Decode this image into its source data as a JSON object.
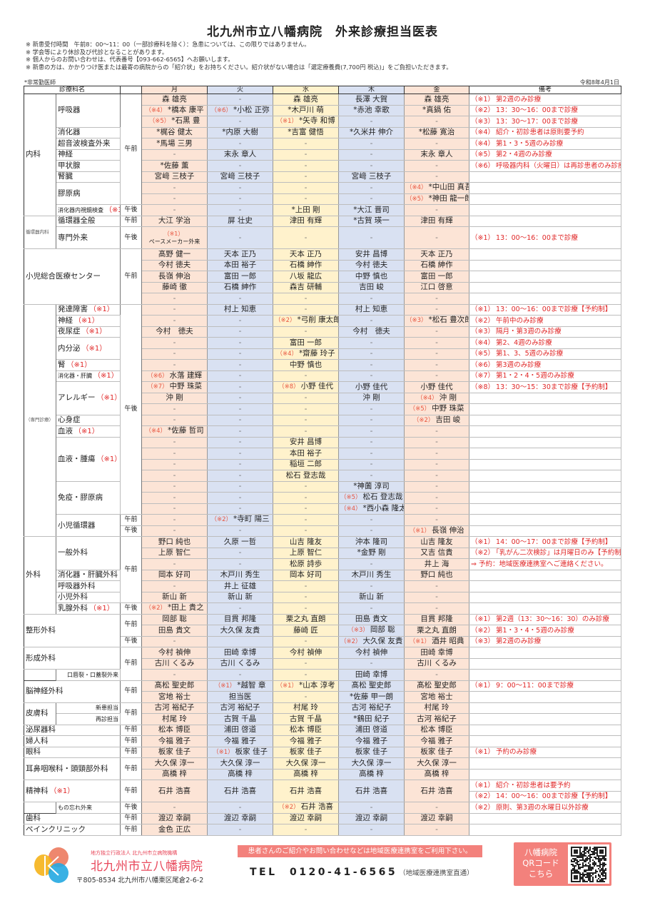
{
  "header": {
    "title": "北九州市立八幡病院　外来診療担当医表",
    "notes": [
      "※ 新患受付時間　午前8：00～11：00（一部診療科を除く）：急患については、この限りではありません。",
      "※ 学会等により休診及び代診となることがあります。",
      "※ 個人からのお問い合わせは、代表番号【093-662-6565】へお願いします。",
      "※ 新患の方は、かかりつけ医または最寄の病院からの「紹介状」をお持ちください。紹介状がない場合は「選定療養費(7,700円 税込)」をご負担いただきます。"
    ],
    "legend": "*非常勤医師",
    "date": "令和8年4月1日"
  },
  "columns": {
    "dept": "診療科名",
    "days": [
      "月",
      "火",
      "水",
      "木",
      "金"
    ],
    "remarks": "備考"
  },
  "colors": {
    "mon": "#fce4d6",
    "tue": "#d9e1f2",
    "wed": "#fff2cc",
    "thu": "#d9e1f2",
    "fri": "#fce4d6",
    "remarks": "#e02727",
    "brand": "#e8475a"
  },
  "rows": [
    {
      "sep": true,
      "d": {
        "t": "内科",
        "rs": 11
      },
      "s": {
        "t": "呼吸器",
        "rs": 3
      },
      "tm": {
        "t": "午前",
        "rs": 10
      },
      "days": [
        "森 雄亮",
        "-",
        "森 雄亮",
        "長澤 大賀",
        "森 雄亮"
      ],
      "n": [
        "（※1）",
        "第2週のみ診療"
      ]
    },
    {
      "days": [
        [
          "（※4）",
          "*橋本 康平"
        ],
        [
          "（※6）",
          "*小松 正弥"
        ],
        "*木戸川 萌",
        "*赤池 幸歌",
        "*真鍋 佑"
      ],
      "n": [
        "（※2）",
        "13：30～16：00まで診療"
      ]
    },
    {
      "days": [
        [
          "（※5）",
          "*石黒 豊"
        ],
        "-",
        [
          "（※1）",
          "*矢寺 和博"
        ],
        "-",
        "-"
      ],
      "n": [
        "（※3）",
        "13：30～17：00まで診療"
      ]
    },
    {
      "s": "消化器",
      "days": [
        "*梶谷 健太",
        "*内原 大樹",
        "*吉富 健悟",
        "*久米井 伸介",
        "*松藤 寛治"
      ],
      "n": [
        "（※4）",
        "紹介・初診患者は原則要予約"
      ]
    },
    {
      "s": "超音波検査外来",
      "days": [
        "*馬場 三男",
        "-",
        "-",
        "-",
        "-"
      ],
      "n": [
        "（※4）",
        "第1・3・5週のみ診療"
      ]
    },
    {
      "s": "神経",
      "days": [
        "-",
        "末永 章人",
        "-",
        "-",
        "末永 章人"
      ],
      "n": [
        "（※5）",
        "第2・4週のみ診療"
      ]
    },
    {
      "s": "甲状腺",
      "days": [
        "*佐藤 薫",
        "-",
        "-",
        "-",
        "-"
      ],
      "n": [
        "（※6）",
        "呼吸器内科（火曜日）は再診患者のみ診療"
      ]
    },
    {
      "s": "腎臓",
      "days": [
        "宮﨑 三枝子",
        "宮﨑 三枝子",
        "-",
        "宮﨑 三枝子",
        "-"
      ],
      "n": ""
    },
    {
      "s": {
        "t": "膠原病",
        "rs": 2
      },
      "days": [
        "-",
        "-",
        "-",
        "-",
        [
          "（※4）",
          "*中山田 真吾"
        ]
      ],
      "n": ""
    },
    {
      "days": [
        "-",
        "-",
        "-",
        "-",
        [
          "（※5）",
          "*神田 龍一郎"
        ]
      ],
      "n": ""
    },
    {
      "s": {
        "t": [
          "消化器内視鏡検査",
          "（※3）"
        ],
        "cls": "sm"
      },
      "tm": "午後",
      "days": [
        "-",
        "-",
        "*上田 剛",
        "*大江 晋司",
        "-"
      ],
      "n": ""
    },
    {
      "sep": true,
      "d": {
        "t": "循環器内科",
        "rs": 3,
        "cls": "xs"
      },
      "s": "循環器全般",
      "tm": "午前",
      "days": [
        "大江 学治",
        "屏 壮史",
        "津田 有輝",
        "*古賀 瑛一",
        "津田 有輝"
      ],
      "n": ""
    },
    {
      "s": {
        "t": "専門外来",
        "rs": 2
      },
      "tm": {
        "t": "午後",
        "rs": 2
      },
      "days": [
        {
          "t": [
            "（※1）",
            "ペースメーカー外来"
          ],
          "rs": 2,
          "cls": "stack"
        },
        {
          "t": "-",
          "rs": 2
        },
        {
          "t": "-",
          "rs": 2
        },
        {
          "t": "-",
          "rs": 2
        },
        {
          "t": "-",
          "rs": 2
        }
      ],
      "n": {
        "t": [
          "（※1）",
          "13：00～16：00まで診療"
        ],
        "rs": 2
      }
    },
    {
      "days": [
        null,
        null,
        null,
        null,
        null
      ]
    },
    {
      "sep": true,
      "d": {
        "t": "小児総合医療センター",
        "cs": 2,
        "rs": 5
      },
      "tm": {
        "t": "午前",
        "rs": 5
      },
      "days": [
        "髙野 健一",
        "天本 正乃",
        "天本 正乃",
        "安井 昌博",
        "天本 正乃"
      ],
      "n": ""
    },
    {
      "days": [
        "今村 徳夫",
        "本田 裕子",
        "石橋 紳作",
        "今村 徳夫",
        "石橋 紳作"
      ],
      "n": ""
    },
    {
      "days": [
        "長嶺 伸治",
        "富田 一郎",
        "八坂 龍広",
        "中野 慎也",
        "富田 一郎"
      ],
      "n": ""
    },
    {
      "days": [
        "藤崎 徹",
        "石橋 紳作",
        "森吉 研輔",
        "吉田 峻",
        "江口 啓意"
      ],
      "n": ""
    },
    {
      "days": [
        "-",
        "-",
        "-",
        "-",
        "-"
      ],
      "n": ""
    },
    {
      "d": {
        "t": "（専門診療）",
        "rs": 21,
        "cls": "xs"
      },
      "s": [
        "発達障害",
        "（※1）"
      ],
      "tm": {
        "t": "午後",
        "rs": 19
      },
      "days": [
        "-",
        "村上 知恵",
        "-",
        "村上 知恵",
        "-"
      ],
      "n": [
        "（※1）",
        "13：00～16：00まで診療【予約制】"
      ]
    },
    {
      "s": [
        "神経",
        "（※1）"
      ],
      "days": [
        "-",
        "-",
        [
          "（※2）",
          "*弓削 康太郎"
        ],
        "-",
        [
          "（※3）",
          "*松石 豊次郎"
        ]
      ],
      "n": [
        "（※2）",
        "午前中のみ診療"
      ]
    },
    {
      "s": [
        "夜尿症",
        "（※1）"
      ],
      "days": [
        "今村　徳夫",
        "-",
        "-",
        "今村　徳夫",
        "-"
      ],
      "n": [
        "（※3）",
        "隔月・第3週のみ診療"
      ]
    },
    {
      "s": {
        "t": [
          "内分泌",
          "（※1）"
        ],
        "rs": 2
      },
      "days": [
        "-",
        "-",
        "富田 一郎",
        "-",
        "-"
      ],
      "n": [
        "（※4）",
        "第2、4週のみ診療"
      ]
    },
    {
      "days": [
        "-",
        "-",
        [
          "（※4）",
          "*齋藤 玲子"
        ],
        "-",
        "-"
      ],
      "n": [
        "（※5）",
        "第1、3、5週のみ診療"
      ]
    },
    {
      "s": [
        "腎",
        "（※1）"
      ],
      "days": [
        "-",
        "-",
        "中野 慎也",
        "-",
        "-"
      ],
      "n": [
        "（※6）",
        "第3週のみ診療"
      ]
    },
    {
      "s": {
        "t": [
          "消化器・肝臓",
          "（※1）"
        ],
        "cls": "sm"
      },
      "days": [
        [
          "（※6）",
          "水落 建輝"
        ],
        "-",
        "-",
        "-",
        "-"
      ],
      "n": [
        "（※7）",
        "第1・2・4・5週のみ診療"
      ]
    },
    {
      "s": {
        "t": [
          "アレルギー",
          "（※1）"
        ],
        "rs": 3
      },
      "days": [
        [
          "（※7）",
          "中野 珠菜"
        ],
        "-",
        [
          "（※8）",
          "小野 佳代"
        ],
        "小野 佳代",
        "小野 佳代"
      ],
      "n": [
        "（※8）",
        "13：30～15：30まで診療【予約制】"
      ]
    },
    {
      "days": [
        "沖 剛",
        "-",
        "-",
        "沖 剛",
        [
          "（※4）",
          "沖 剛"
        ]
      ],
      "n": ""
    },
    {
      "days": [
        "-",
        "-",
        "-",
        "-",
        [
          "（※5）",
          "中野 珠菜"
        ]
      ],
      "n": ""
    },
    {
      "s": "心身症",
      "days": [
        "-",
        "-",
        "-",
        "-",
        [
          "（※2）",
          "吉田 峻"
        ]
      ],
      "n": ""
    },
    {
      "s": [
        "血液",
        "（※1）"
      ],
      "days": [
        [
          "（※4）",
          "*佐藤 哲司"
        ],
        "-",
        "-",
        "-",
        "-"
      ],
      "n": ""
    },
    {
      "s": {
        "t": [
          "血液・腫瘍",
          "（※1）"
        ],
        "rs": 4
      },
      "days": [
        "-",
        "-",
        "安井 昌博",
        "-",
        "-"
      ],
      "n": ""
    },
    {
      "days": [
        "-",
        "-",
        "本田 裕子",
        "-",
        "-"
      ],
      "n": ""
    },
    {
      "days": [
        "-",
        "-",
        "稲垣 二郎",
        "-",
        "-"
      ],
      "n": ""
    },
    {
      "days": [
        "-",
        "-",
        "松石 登志哉",
        "-",
        "-"
      ],
      "n": ""
    },
    {
      "s": {
        "t": "免疫・膠原病",
        "rs": 3
      },
      "days": [
        "-",
        "-",
        "-",
        "*神薗 淳司",
        "-"
      ],
      "n": ""
    },
    {
      "days": [
        "-",
        "-",
        "-",
        [
          "（※5）",
          "松石 登志哉"
        ],
        "-"
      ],
      "n": ""
    },
    {
      "days": [
        "-",
        "-",
        "-",
        [
          "（※4）",
          "*西小森 隆太"
        ],
        "-"
      ],
      "n": ""
    },
    {
      "s": {
        "t": "小児循環器",
        "rs": 2
      },
      "tm": "午前",
      "days": [
        "-",
        [
          "（※2）",
          "*寺町 陽三"
        ],
        "-",
        "-",
        "-"
      ],
      "n": ""
    },
    {
      "tm": "午後",
      "days": [
        "-",
        "-",
        "-",
        "-",
        [
          "（※1）",
          "長嶺 伸治"
        ]
      ],
      "n": ""
    },
    {
      "sep": true,
      "d": {
        "t": "外科",
        "rs": 7
      },
      "s": {
        "t": "一般外科",
        "rs": 3
      },
      "tm": {
        "t": "午前",
        "rs": 6
      },
      "days": [
        "野口 純也",
        "久原 一哲",
        "山吉 隆友",
        "沖本 隆司",
        "山吉 隆友"
      ],
      "n": [
        "（※1）",
        "14：00～17：00まで診療【予約制】"
      ]
    },
    {
      "days": [
        "上原 智仁",
        "-",
        "上原 智仁",
        "*金野 剛",
        "又吉 信貴"
      ],
      "n": [
        "（※2）",
        "「乳がん二次検診」は月曜日のみ【予約制】"
      ]
    },
    {
      "days": [
        "-",
        "-",
        "松原 詩歩",
        "-",
        "井上 海"
      ],
      "n": "⇒ 予約：地域医療連携室へご連絡ください。"
    },
    {
      "s": "消化器・肝臓外科",
      "days": [
        "岡本 好司",
        "木戸川 秀生",
        "岡本 好司",
        "木戸川 秀生",
        "野口 純也"
      ],
      "n": ""
    },
    {
      "s": "呼吸器外科",
      "days": [
        "-",
        "井上 征雄",
        "-",
        "-",
        "-"
      ],
      "n": ""
    },
    {
      "s": "小児外科",
      "days": [
        "新山 新",
        "新山 新",
        "-",
        "新山 新",
        "-"
      ],
      "n": ""
    },
    {
      "s": [
        "乳腺外科",
        "（※1）"
      ],
      "tm": "午後",
      "days": [
        [
          "（※2）",
          "*田上 貴之"
        ],
        "-",
        "-",
        "-",
        "-"
      ],
      "n": ""
    },
    {
      "sep": true,
      "d": {
        "t": "整形外科",
        "cs": 2,
        "rs": 3
      },
      "tm": {
        "t": "午前",
        "rs": 2
      },
      "days": [
        "岡部 聡",
        "目貫 邦隆",
        "栗之丸 直朗",
        "田島 貴文",
        "目貫 邦隆"
      ],
      "n": [
        "（※1）",
        "第2週（13：30～16：30）のみ診療"
      ]
    },
    {
      "days": [
        "田島 貴文",
        "大久保 友貴",
        "藤崎 匠",
        [
          "（※3）",
          "岡部 聡"
        ],
        "栗之丸 直朗"
      ],
      "n": [
        "（※2）",
        "第1・3・4・5週のみ診療"
      ]
    },
    {
      "tm": "午後",
      "days": [
        "-",
        "",
        "-",
        [
          "（※2）",
          "大久保 友貴"
        ],
        [
          "（※1）",
          "酒井 昭典"
        ]
      ],
      "n": [
        "（※3）",
        "第2週のみ診療"
      ]
    },
    {
      "sep": true,
      "d": {
        "t": "形成外科",
        "cs": 2,
        "rs": 2
      },
      "tm": {
        "t": "午前",
        "rs": 3
      },
      "days": [
        "今村 禎伸",
        "田崎 幸博",
        "今村 禎伸",
        "今村 禎伸",
        "田崎 幸博"
      ],
      "n": ""
    },
    {
      "days": [
        "古川 くるみ",
        "古川 くるみ",
        "-",
        "-",
        "古川 くるみ"
      ],
      "n": ""
    },
    {
      "d": {
        "t": "",
        "cls": "cont"
      },
      "s": {
        "t": "口唇裂・口蓋裂外来",
        "cls": "sm r"
      },
      "days": [
        "-",
        "-",
        "-",
        "田崎 幸博",
        "-"
      ],
      "n": ""
    },
    {
      "sep": true,
      "d": {
        "t": "脳神経外科",
        "cs": 2,
        "rs": 2
      },
      "tm": {
        "t": "午前",
        "rs": 2
      },
      "days": [
        "髙松 聖史郎",
        [
          "（※1）",
          "*越智 章"
        ],
        [
          "（※1）",
          "*山本 淳考"
        ],
        "髙松 聖史郎",
        "髙松 聖史郎"
      ],
      "n": [
        "（※1）",
        "9：00～11：00まで診療"
      ]
    },
    {
      "days": [
        "宮地 裕士",
        "担当医",
        "-",
        "*佐藤 甲一朗",
        "宮地 裕士"
      ],
      "n": ""
    },
    {
      "sep": true,
      "d": {
        "t": "皮膚科",
        "rs": 2
      },
      "s": {
        "t": "新患担当",
        "cls": "sm r"
      },
      "tm": {
        "t": "午前",
        "rs": 2
      },
      "days": [
        "古河 裕紀子",
        "古河 裕紀子",
        "村尾 玲",
        "古河 裕紀子",
        "村尾 玲"
      ],
      "n": ""
    },
    {
      "s": {
        "t": "再診担当",
        "cls": "sm r"
      },
      "days": [
        "村尾 玲",
        "古賀 千晶",
        "古賀 千晶",
        "*鶴田 紀子",
        "古河 裕紀子"
      ],
      "n": ""
    },
    {
      "sep": true,
      "d": {
        "t": "泌尿器科",
        "cs": 2
      },
      "tm": "午前",
      "days": [
        "松本 博臣",
        "浦田 啓道",
        "松本 博臣",
        "浦田 啓道",
        "松本 博臣"
      ],
      "n": ""
    },
    {
      "sep": true,
      "d": {
        "t": "婦人科",
        "cs": 2
      },
      "tm": "午前",
      "days": [
        "今福 雅子",
        "今福 雅子",
        "今福 雅子",
        "今福 雅子",
        "今福 雅子"
      ],
      "n": ""
    },
    {
      "sep": true,
      "d": {
        "t": "眼科",
        "cs": 2
      },
      "tm": "午前",
      "days": [
        "板家 佳子",
        [
          "（※1）",
          "板家 佳子"
        ],
        "板家 佳子",
        "板家 佳子",
        "板家 佳子"
      ],
      "n": [
        "（※1）",
        "予約のみ診療"
      ]
    },
    {
      "sep": true,
      "d": {
        "t": "耳鼻咽喉科・頭頸部外科",
        "cs": 2,
        "rs": 2
      },
      "tm": {
        "t": "午前",
        "rs": 2
      },
      "days": [
        "大久保 淳一",
        "大久保 淳一",
        "大久保 淳一",
        "大久保 淳一",
        "大久保 淳一"
      ],
      "n": ""
    },
    {
      "days": [
        "高橋 梓",
        "高橋 梓",
        "高橋 梓",
        "高橋 梓",
        "高橋 梓"
      ],
      "n": ""
    },
    {
      "sep": true,
      "d": {
        "t": [
          "精神科",
          "（※1）"
        ],
        "cs": 2,
        "rs": 2
      },
      "tm": {
        "t": "午前",
        "rs": 2
      },
      "days": [
        {
          "t": "石井 浩喜",
          "rs": 2
        },
        {
          "t": "石井 浩喜",
          "rs": 2
        },
        {
          "t": "石井 浩喜",
          "rs": 2
        },
        {
          "t": "石井 浩喜",
          "rs": 2
        },
        {
          "t": "石井 浩喜",
          "rs": 2
        }
      ],
      "n": [
        "（※1）",
        "紹介・初診患者は要予約"
      ]
    },
    {
      "days": [
        null,
        null,
        null,
        null,
        null
      ],
      "n": [
        "（※2）",
        "14：00～16：00まで診療【予約制】"
      ]
    },
    {
      "d": {
        "t": "",
        "cls": "cont"
      },
      "s": {
        "t": "もの忘れ外来",
        "cls": "sm"
      },
      "tm": "午後",
      "days": [
        "-",
        "-",
        [
          "（※2）",
          "石井 浩喜"
        ],
        "-",
        "-"
      ],
      "n": [
        "（※2）",
        "原則、第3週の水曜日以外診療"
      ]
    },
    {
      "sep": true,
      "d": {
        "t": "歯科",
        "cs": 2
      },
      "tm": "午前",
      "days": [
        "渡辺 幸嗣",
        "渡辺 幸嗣",
        "渡辺 幸嗣",
        "渡辺 幸嗣",
        "渡辺 幸嗣"
      ],
      "n": ""
    },
    {
      "sep": true,
      "d": {
        "t": "ペインクリニック",
        "cs": 2
      },
      "tm": "午前",
      "days": [
        "金色 正広",
        "-",
        "-",
        "-",
        "-"
      ],
      "n": ""
    }
  ],
  "footer": {
    "org": "地方独立行政法人 北九州市立病院機構",
    "hospital": "北九州市立八幡病院",
    "address": "〒805-8534 北九州市八幡東区尾倉2-6-2",
    "banner": "患者さんのご紹介やお問い合わせなどは地域医療連携室をご利用下さい。",
    "tel": "TEL　0120-41-6565",
    "tel_note": "（地域医療連携室直通）",
    "qr_lines": [
      "八幡病院",
      "QRコード",
      "こちら"
    ]
  }
}
